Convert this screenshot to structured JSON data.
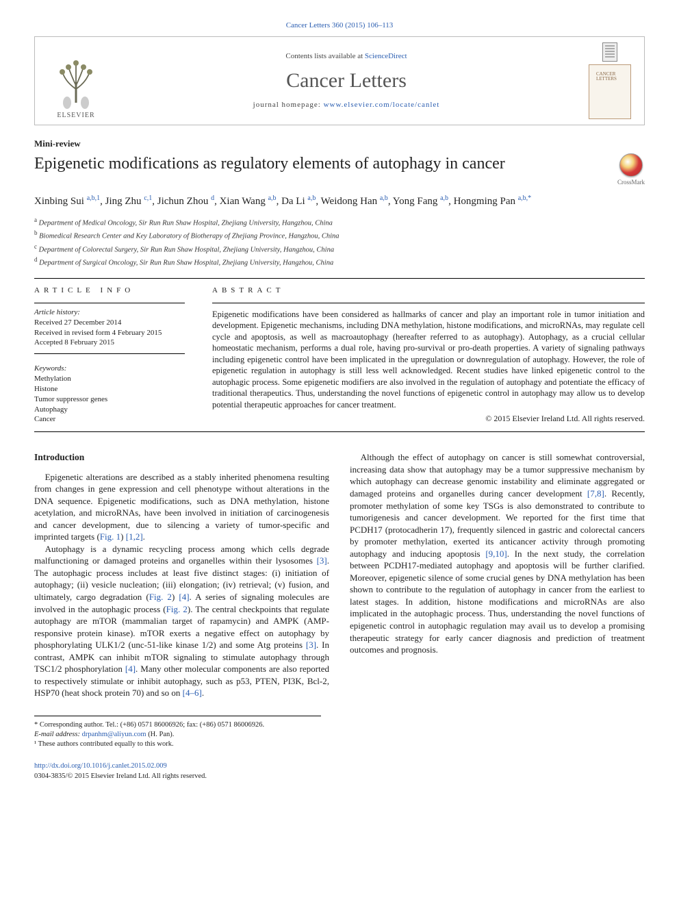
{
  "citation_line": "Cancer Letters 360 (2015) 106–113",
  "banner": {
    "publisher_name": "ELSEVIER",
    "contents_prefix": "Contents lists available at ",
    "contents_link": "ScienceDirect",
    "journal_name": "Cancer Letters",
    "homepage_prefix": "journal homepage: ",
    "homepage_url": "www.elsevier.com/locate/canlet",
    "cover_label": "CANCER LETTERS"
  },
  "article_type": "Mini-review",
  "title": "Epigenetic modifications as regulatory elements of autophagy in cancer",
  "crossmark_label": "CrossMark",
  "authors_html_parts": [
    {
      "name": "Xinbing Sui",
      "sup": "a,b,1"
    },
    {
      "name": "Jing Zhu",
      "sup": "c,1"
    },
    {
      "name": "Jichun Zhou",
      "sup": "d"
    },
    {
      "name": "Xian Wang",
      "sup": "a,b"
    },
    {
      "name": "Da Li",
      "sup": "a,b"
    },
    {
      "name": "Weidong Han",
      "sup": "a,b"
    },
    {
      "name": "Yong Fang",
      "sup": "a,b"
    },
    {
      "name": "Hongming Pan",
      "sup": "a,b,*"
    }
  ],
  "affiliations": [
    {
      "tag": "a",
      "text": "Department of Medical Oncology, Sir Run Run Shaw Hospital, Zhejiang University, Hangzhou, China"
    },
    {
      "tag": "b",
      "text": "Biomedical Research Center and Key Laboratory of Biotherapy of Zhejiang Province, Hangzhou, China"
    },
    {
      "tag": "c",
      "text": "Department of Colorectal Surgery, Sir Run Run Shaw Hospital, Zhejiang University, Hangzhou, China"
    },
    {
      "tag": "d",
      "text": "Department of Surgical Oncology, Sir Run Run Shaw Hospital, Zhejiang University, Hangzhou, China"
    }
  ],
  "info": {
    "head": "ARTICLE INFO",
    "history_label": "Article history:",
    "received": "Received 27 December 2014",
    "revised": "Received in revised form 4 February 2015",
    "accepted": "Accepted 8 February 2015",
    "keywords_label": "Keywords:",
    "keywords": [
      "Methylation",
      "Histone",
      "Tumor suppressor genes",
      "Autophagy",
      "Cancer"
    ]
  },
  "abstract": {
    "head": "ABSTRACT",
    "body": "Epigenetic modifications have been considered as hallmarks of cancer and play an important role in tumor initiation and development. Epigenetic mechanisms, including DNA methylation, histone modifications, and microRNAs, may regulate cell cycle and apoptosis, as well as macroautophagy (hereafter referred to as autophagy). Autophagy, as a crucial cellular homeostatic mechanism, performs a dual role, having pro-survival or pro-death properties. A variety of signaling pathways including epigenetic control have been implicated in the upregulation or downregulation of autophagy. However, the role of epigenetic regulation in autophagy is still less well acknowledged. Recent studies have linked epigenetic control to the autophagic process. Some epigenetic modifiers are also involved in the regulation of autophagy and potentiate the efficacy of traditional therapeutics. Thus, understanding the novel functions of epigenetic control in autophagy may allow us to develop potential therapeutic approaches for cancer treatment.",
    "copyright": "© 2015 Elsevier Ireland Ltd. All rights reserved."
  },
  "intro_head": "Introduction",
  "paragraphs": {
    "p1a": "Epigenetic alterations are described as a stably inherited phenomena resulting from changes in gene expression and cell phenotype without alterations in the DNA sequence. Epigenetic modifications, such as DNA methylation, histone acetylation, and microRNAs, have been involved in initiation of carcinogenesis and cancer development, due to silencing a variety of tumor-specific and imprinted targets (",
    "p1_fig": "Fig. 1",
    "p1b": ") ",
    "p1_refs": "[1,2]",
    "p1c": ".",
    "p2a": "Autophagy is a dynamic recycling process among which cells degrade malfunctioning or damaged proteins and organelles within their lysosomes ",
    "p2_ref1": "[3]",
    "p2b": ". The autophagic process includes at least five distinct stages: (i) initiation of autophagy; (ii) vesicle nucleation; (iii) elongation; (iv) retrieval; (v) fusion, and ultimately, cargo degradation (",
    "p2_fig1": "Fig. 2",
    "p2c": ") ",
    "p2_ref2": "[4]",
    "p2d": ". A series of signaling molecules are involved in the autophagic process (",
    "p2_fig2": "Fig. 2",
    "p2e": "). The central checkpoints that regulate autophagy are mTOR (mammalian target of rapamycin) and AMPK (AMP-responsive protein kinase). mTOR exerts a negative effect on autophagy by phosphorylating ULK1/2 (unc-51-like kinase 1/2) and some Atg proteins ",
    "p2_ref3": "[3]",
    "p2f": ". In contrast, AMPK can inhibit mTOR signaling to stimulate autophagy through TSC1/2 phosphorylation ",
    "p2_ref4": "[4]",
    "p2g": ". Many other molecular components are also reported to respectively stimulate or inhibit autophagy, such as p53, PTEN, PI3K, Bcl-2, HSP70 (heat shock protein 70) and so on ",
    "p2_ref5": "[4–6]",
    "p2h": ".",
    "p3a": "Although the effect of autophagy on cancer is still somewhat controversial, increasing data show that autophagy may be a tumor suppressive mechanism by which autophagy can decrease genomic instability and eliminate aggregated or damaged proteins and organelles during cancer development ",
    "p3_ref1": "[7,8]",
    "p3b": ". Recently, promoter methylation of some key TSGs is also demonstrated to contribute to tumorigenesis and cancer development. We reported for the first time that PCDH17 (protocadherin 17), frequently silenced in gastric and colorectal cancers by promoter methylation, exerted its anticancer activity through promoting autophagy and inducing apoptosis ",
    "p3_ref2": "[9,10]",
    "p3c": ". In the next study, the correlation between PCDH17-mediated autophagy and apoptosis will be further clarified. Moreover, epigenetic silence of some crucial genes by DNA methylation has been shown to contribute to the regulation of autophagy in cancer from the earliest to latest stages. In addition, histone modifications and microRNAs are also implicated in the autophagic process. Thus, understanding the novel functions of epigenetic control in autophagic regulation may avail us to develop a promising therapeutic strategy for early cancer diagnosis and prediction of treatment outcomes and prognosis."
  },
  "footnotes": {
    "corr": "* Corresponding author. Tel.: (+86) 0571 86006926; fax: (+86) 0571 86006926.",
    "email_label": "E-mail address: ",
    "email": "drpanhm@aliyun.com",
    "email_who": " (H. Pan).",
    "equal": "¹ These authors contributed equally to this work."
  },
  "bottom": {
    "doi": "http://dx.doi.org/10.1016/j.canlet.2015.02.009",
    "issn_line": "0304-3835/© 2015 Elsevier Ireland Ltd. All rights reserved."
  },
  "colors": {
    "link": "#2a5db0",
    "text": "#222222",
    "border": "#bbbbbb"
  }
}
